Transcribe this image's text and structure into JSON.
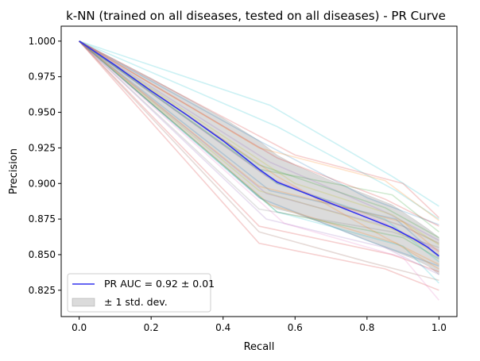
{
  "chart_data": {
    "type": "line",
    "title": "k-NN (trained on all diseases, tested on all diseases) -  PR Curve",
    "xlabel": "Recall",
    "ylabel": "Precision",
    "xlim": [
      -0.05,
      1.05
    ],
    "ylim": [
      0.8065,
      1.0105
    ],
    "xticks": [
      0.0,
      0.2,
      0.4,
      0.6,
      0.8,
      1.0
    ],
    "xtick_labels": [
      "0.0",
      "0.2",
      "0.4",
      "0.6",
      "0.8",
      "1.0"
    ],
    "yticks": [
      0.825,
      0.85,
      0.875,
      0.9,
      0.925,
      0.95,
      0.975,
      1.0
    ],
    "ytick_labels": [
      "0.825",
      "0.850",
      "0.875",
      "0.900",
      "0.925",
      "0.950",
      "0.975",
      "1.000"
    ],
    "grid": false,
    "legend_position": "lower-left",
    "mean_curve": {
      "name": "PR AUC = 0.92 ± 0.01",
      "color": "#3333ee",
      "x": [
        0.0,
        0.1,
        0.2,
        0.3,
        0.4,
        0.5,
        0.55,
        0.6,
        0.7,
        0.8,
        0.87,
        0.93,
        0.97,
        1.0
      ],
      "y": [
        1.0,
        0.983,
        0.965,
        0.948,
        0.93,
        0.91,
        0.901,
        0.896,
        0.886,
        0.876,
        0.869,
        0.861,
        0.855,
        0.849
      ]
    },
    "std_band": {
      "name": "± 1 std. dev.",
      "color": "#888888",
      "x": [
        0.0,
        0.1,
        0.2,
        0.3,
        0.4,
        0.5,
        0.55,
        0.6,
        0.7,
        0.8,
        0.87,
        0.93,
        0.97,
        1.0
      ],
      "upper": [
        1.0,
        0.987,
        0.974,
        0.96,
        0.946,
        0.93,
        0.92,
        0.913,
        0.902,
        0.892,
        0.885,
        0.875,
        0.868,
        0.862
      ],
      "lower": [
        1.0,
        0.978,
        0.956,
        0.935,
        0.913,
        0.89,
        0.882,
        0.879,
        0.87,
        0.86,
        0.853,
        0.847,
        0.842,
        0.836
      ]
    },
    "fold_curves": [
      {
        "color": "#17becf",
        "x": [
          0.0,
          0.53,
          0.87,
          1.0
        ],
        "y": [
          1.0,
          0.955,
          0.905,
          0.884
        ]
      },
      {
        "color": "#17becf",
        "x": [
          0.0,
          0.55,
          0.88,
          1.0
        ],
        "y": [
          1.0,
          0.94,
          0.895,
          0.875
        ]
      },
      {
        "color": "#1f77b4",
        "x": [
          0.0,
          0.5,
          0.8,
          1.0
        ],
        "y": [
          1.0,
          0.93,
          0.89,
          0.871
        ]
      },
      {
        "color": "#ff7f0e",
        "x": [
          0.0,
          0.5,
          0.85,
          1.0
        ],
        "y": [
          1.0,
          0.925,
          0.902,
          0.874
        ]
      },
      {
        "color": "#d62728",
        "x": [
          0.0,
          0.6,
          0.9,
          1.0
        ],
        "y": [
          1.0,
          0.92,
          0.9,
          0.876
        ]
      },
      {
        "color": "#2ca02c",
        "x": [
          0.0,
          0.5,
          0.87,
          1.0
        ],
        "y": [
          1.0,
          0.91,
          0.892,
          0.866
        ]
      },
      {
        "color": "#9467bd",
        "x": [
          0.0,
          0.53,
          0.85,
          1.0
        ],
        "y": [
          1.0,
          0.915,
          0.88,
          0.86
        ]
      },
      {
        "color": "#8c564b",
        "x": [
          0.0,
          0.55,
          0.9,
          1.0
        ],
        "y": [
          1.0,
          0.9,
          0.87,
          0.858
        ]
      },
      {
        "color": "#e377c2",
        "x": [
          0.0,
          0.52,
          0.85,
          1.0
        ],
        "y": [
          1.0,
          0.905,
          0.872,
          0.852
        ]
      },
      {
        "color": "#bcbd22",
        "x": [
          0.0,
          0.5,
          0.87,
          1.0
        ],
        "y": [
          1.0,
          0.895,
          0.868,
          0.85
        ]
      },
      {
        "color": "#17becf",
        "x": [
          0.0,
          0.55,
          0.85,
          1.0
        ],
        "y": [
          1.0,
          0.9,
          0.875,
          0.845
        ]
      },
      {
        "color": "#1f77b4",
        "x": [
          0.0,
          0.5,
          0.8,
          1.0
        ],
        "y": [
          1.0,
          0.89,
          0.86,
          0.842
        ]
      },
      {
        "color": "#ff7f0e",
        "x": [
          0.0,
          0.53,
          0.88,
          1.0
        ],
        "y": [
          1.0,
          0.885,
          0.858,
          0.84
        ]
      },
      {
        "color": "#d62728",
        "x": [
          0.0,
          0.5,
          0.87,
          1.0
        ],
        "y": [
          1.0,
          0.87,
          0.85,
          0.838
        ]
      },
      {
        "color": "#2ca02c",
        "x": [
          0.0,
          0.55,
          0.9,
          1.0
        ],
        "y": [
          1.0,
          0.88,
          0.862,
          0.847
        ]
      },
      {
        "color": "#9467bd",
        "x": [
          0.0,
          0.52,
          0.85,
          1.0
        ],
        "y": [
          1.0,
          0.875,
          0.855,
          0.836
        ]
      },
      {
        "color": "#d62728",
        "x": [
          0.0,
          0.5,
          0.85,
          1.0
        ],
        "y": [
          1.0,
          0.858,
          0.84,
          0.825
        ]
      },
      {
        "color": "#8c564b",
        "x": [
          0.0,
          0.5,
          0.8,
          1.0
        ],
        "y": [
          1.0,
          0.866,
          0.845,
          0.832
        ]
      },
      {
        "color": "#e377c2",
        "x": [
          0.0,
          0.57,
          0.9,
          1.0
        ],
        "y": [
          1.0,
          0.872,
          0.848,
          0.818
        ]
      },
      {
        "color": "#7f7f7f",
        "x": [
          0.0,
          0.5,
          0.87,
          1.0
        ],
        "y": [
          1.0,
          0.882,
          0.866,
          0.855
        ]
      },
      {
        "color": "#bcbd22",
        "x": [
          0.0,
          0.6,
          0.87,
          1.0
        ],
        "y": [
          1.0,
          0.9,
          0.878,
          0.857
        ]
      },
      {
        "color": "#ff7f0e",
        "x": [
          0.0,
          0.55,
          0.85,
          1.0
        ],
        "y": [
          1.0,
          0.905,
          0.862,
          0.843
        ]
      },
      {
        "color": "#1f77b4",
        "x": [
          0.0,
          0.53,
          0.88,
          1.0
        ],
        "y": [
          1.0,
          0.895,
          0.875,
          0.848
        ]
      },
      {
        "color": "#2ca02c",
        "x": [
          0.0,
          0.5,
          0.85,
          1.0
        ],
        "y": [
          1.0,
          0.913,
          0.883,
          0.862
        ]
      },
      {
        "color": "#17becf",
        "x": [
          0.0,
          0.55,
          0.9,
          1.0
        ],
        "y": [
          1.0,
          0.88,
          0.856,
          0.83
        ]
      },
      {
        "color": "#9467bd",
        "x": [
          0.0,
          0.52,
          0.87,
          1.0
        ],
        "y": [
          1.0,
          0.893,
          0.869,
          0.853
        ]
      },
      {
        "color": "#d62728",
        "x": [
          0.0,
          0.55,
          0.85,
          1.0
        ],
        "y": [
          1.0,
          0.918,
          0.889,
          0.87
        ]
      },
      {
        "color": "#ff7f0e",
        "x": [
          0.0,
          0.5,
          0.9,
          1.0
        ],
        "y": [
          1.0,
          0.898,
          0.873,
          0.852
        ]
      }
    ]
  }
}
